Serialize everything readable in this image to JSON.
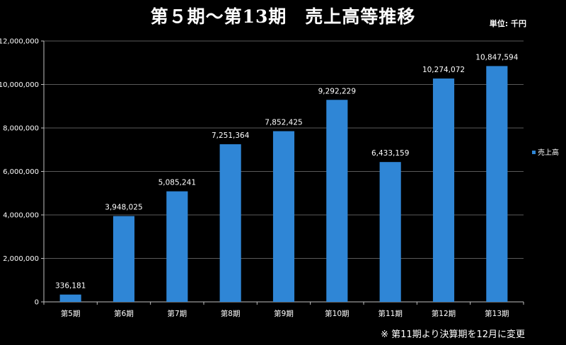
{
  "header": {
    "title": "第５期～第13期　売上高等推移",
    "unit": "単位: 千円"
  },
  "footer": {
    "note": "※ 第11期より決算期を12月に変更"
  },
  "colors": {
    "background": "#000000",
    "bar": "#2f86d6",
    "grid": "#5a5a5a",
    "axis": "#bfbfbf",
    "text": "#ffffff"
  },
  "chart_data": {
    "type": "bar",
    "categories": [
      "第5期",
      "第6期",
      "第7期",
      "第8期",
      "第9期",
      "第10期",
      "第11期",
      "第12期",
      "第13期"
    ],
    "series": [
      {
        "name": "売上高",
        "values": [
          336181,
          3948025,
          5085241,
          7251364,
          7852425,
          9292229,
          6433159,
          10274072,
          10847594
        ]
      }
    ],
    "value_labels": [
      "336,181",
      "3,948,025",
      "5,085,241",
      "7,251,364",
      "7,852,425",
      "9,292,229",
      "6,433,159",
      "10,274,072",
      "10,847,594"
    ],
    "y_ticks": [
      0,
      2000000,
      4000000,
      6000000,
      8000000,
      10000000,
      12000000
    ],
    "y_tick_labels": [
      "0",
      "2,000,000",
      "4,000,000",
      "6,000,000",
      "8,000,000",
      "10,000,000",
      "12,000,000"
    ],
    "ylim": [
      0,
      12000000
    ],
    "grid": true,
    "legend_position": "right"
  }
}
